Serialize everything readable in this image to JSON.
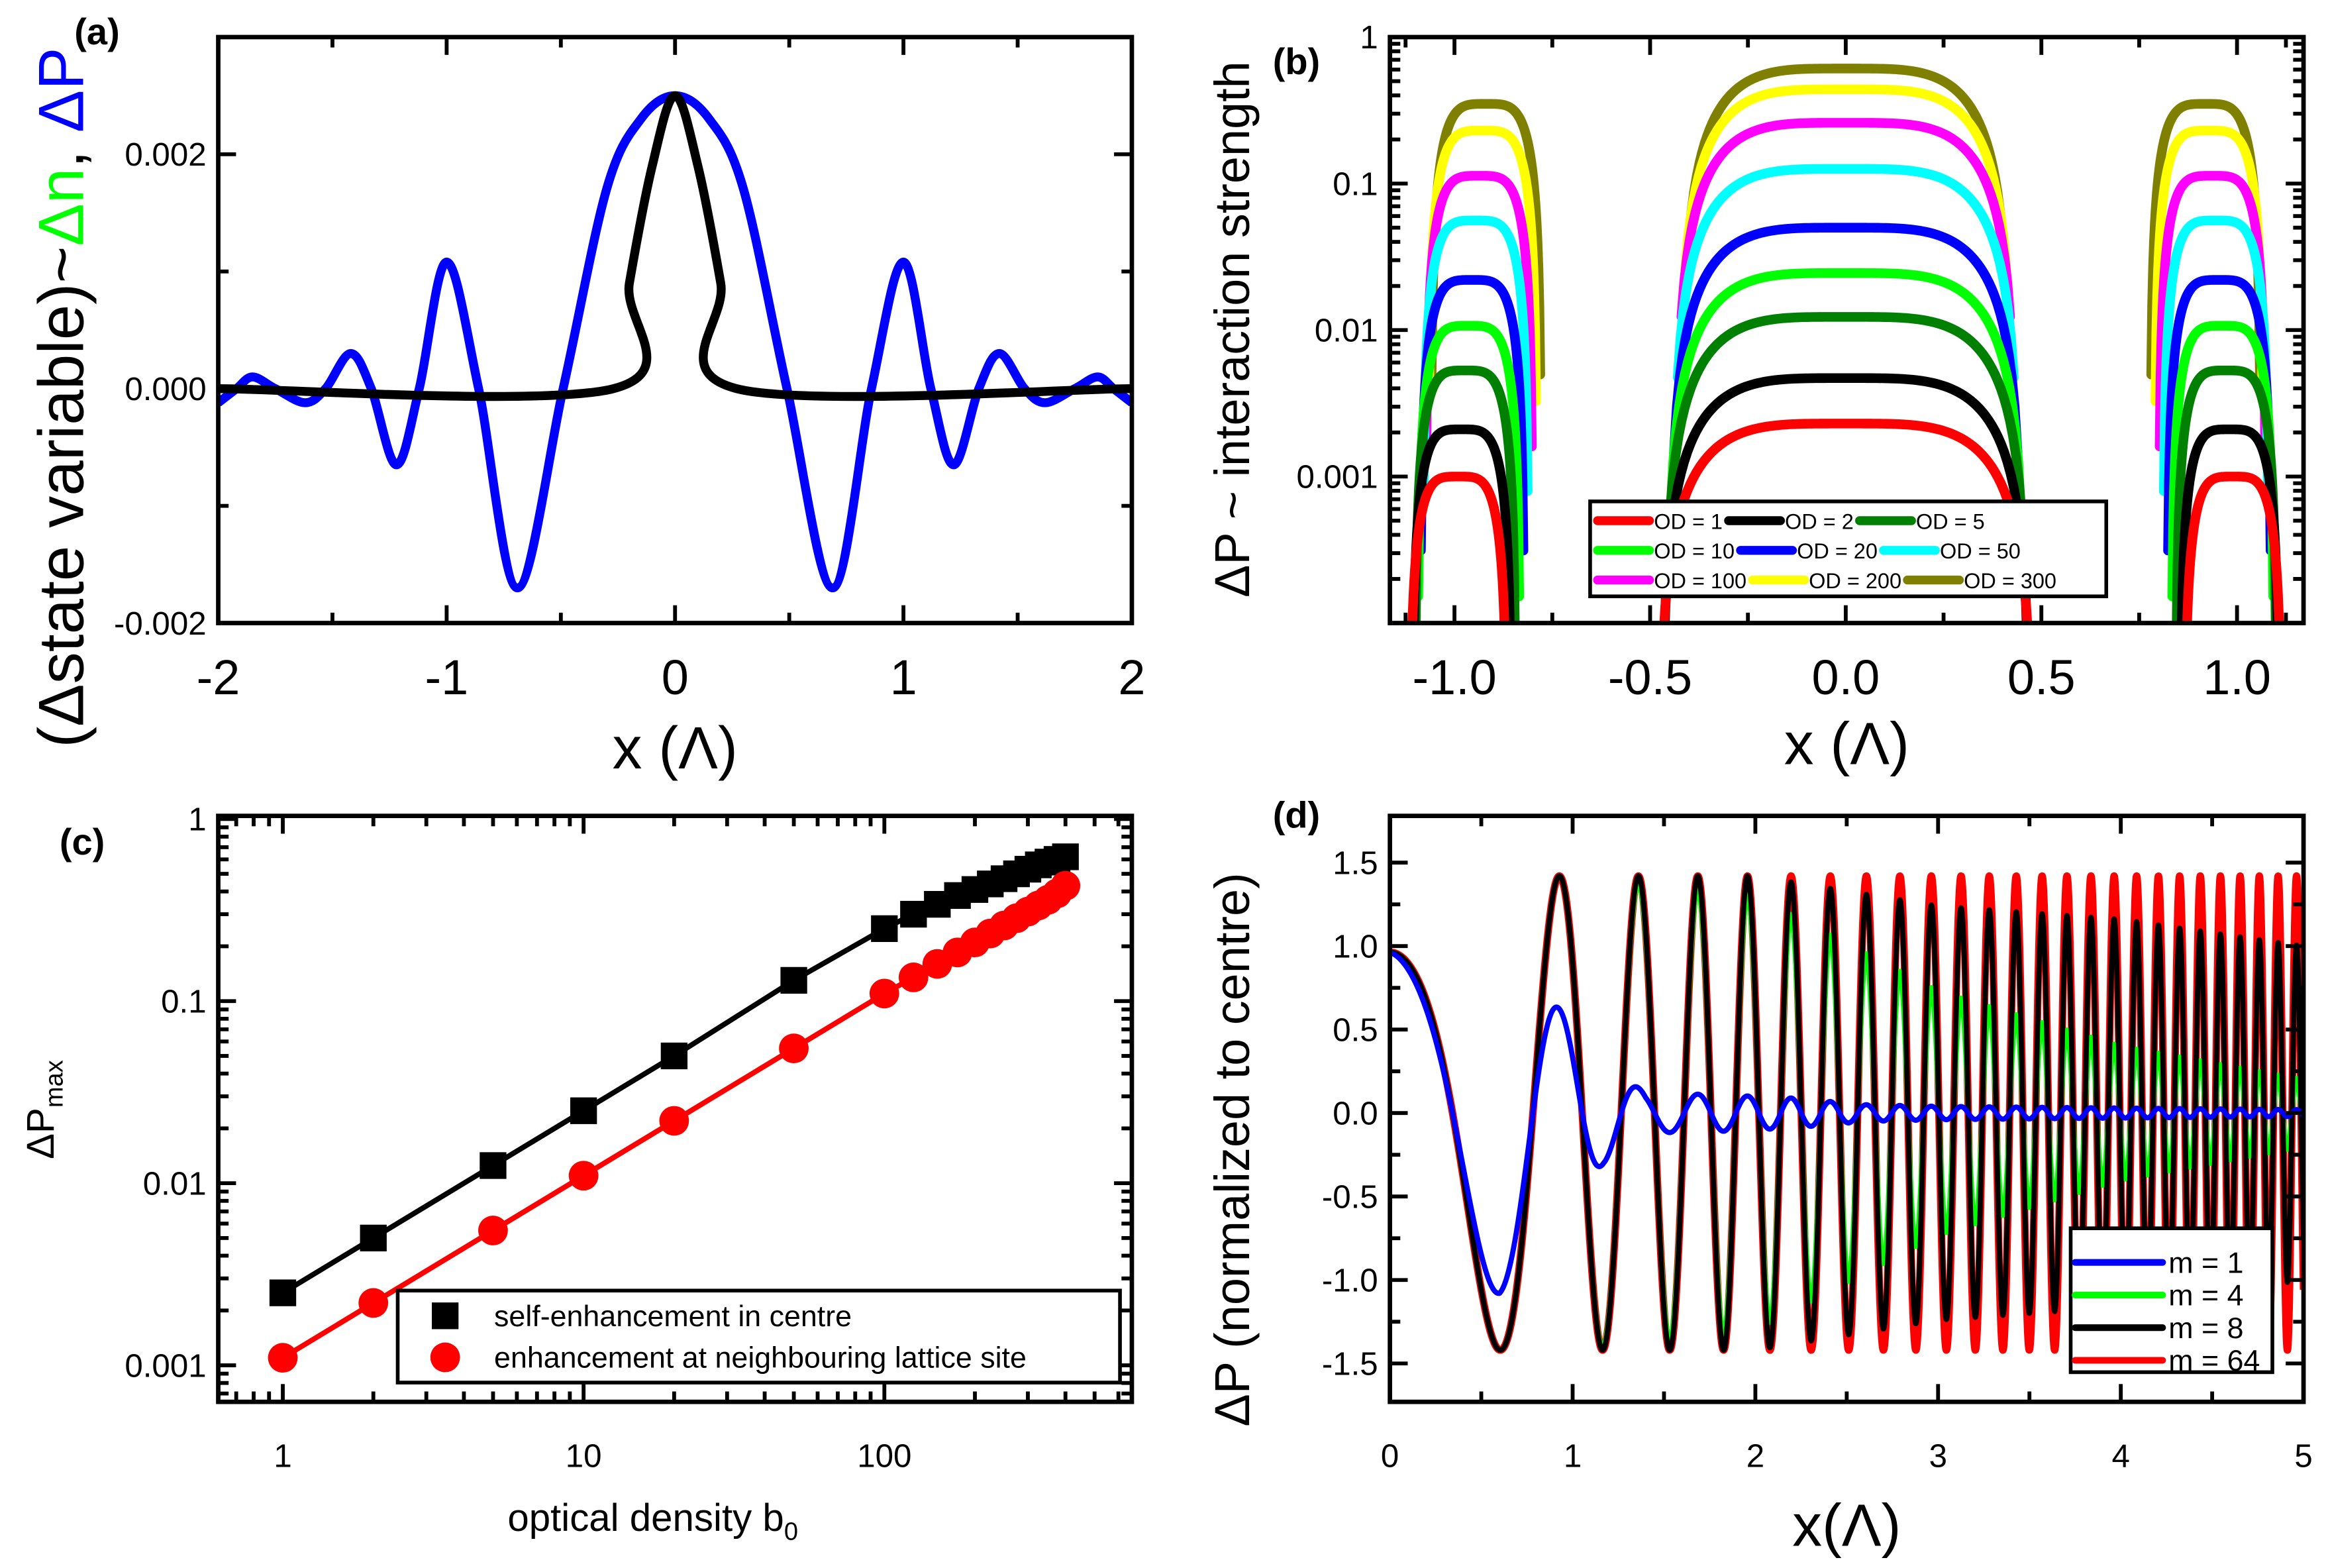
{
  "chart_data": [
    {
      "panel": "(a)",
      "type": "line",
      "xlabel": "x (Λ)",
      "ylabel_parts": [
        {
          "text": "(Δstate variable)~",
          "color": "#000000"
        },
        {
          "text": "Δn",
          "color": "#00ff00"
        },
        {
          "text": ", ",
          "color": "#000000"
        },
        {
          "text": "ΔP",
          "color": "#0000ff"
        }
      ],
      "xlim": [
        -2,
        2
      ],
      "ylim": [
        -0.002,
        0.003
      ],
      "xticks": [
        -2,
        -1,
        0,
        1,
        2
      ],
      "xtick_labels": [
        "-2",
        "-1",
        "0",
        "1",
        "2"
      ],
      "yticks": [
        -0.002,
        0.0,
        0.002
      ],
      "ytick_labels": [
        "-0.002",
        "0.000",
        "0.002"
      ],
      "series": [
        {
          "name": "ΔP",
          "color": "#0000ff",
          "x": [
            -2.0,
            -1.92,
            -1.85,
            -1.75,
            -1.62,
            -1.53,
            -1.42,
            -1.33,
            -1.22,
            -1.12,
            -1.0,
            -0.86,
            -0.69,
            -0.49,
            -0.3,
            -0.15,
            0,
            0.15,
            0.3,
            0.49,
            0.69,
            0.86,
            1.0,
            1.12,
            1.22,
            1.33,
            1.42,
            1.53,
            1.62,
            1.75,
            1.85,
            1.92,
            2.0
          ],
          "y": [
            -0.00012,
            0,
            0.0001,
            0,
            -0.00012,
            0,
            0.0003,
            0,
            -0.00065,
            0,
            0.00108,
            0,
            -0.0017,
            0,
            0.0017,
            0.0023,
            0.0025,
            0.0023,
            0.0017,
            0,
            -0.0017,
            0,
            0.00108,
            0,
            -0.00065,
            0,
            0.0003,
            0,
            -0.00012,
            0,
            0.0001,
            0,
            -0.00012
          ]
        },
        {
          "name": "Δn",
          "color": "#000000",
          "x": [
            -2,
            -0.27,
            -0.2,
            -0.1,
            0,
            0.1,
            0.2,
            0.27,
            2
          ],
          "y": [
            0,
            0,
            0.0009,
            0.0019,
            0.0025,
            0.0019,
            0.0009,
            0,
            0
          ]
        }
      ]
    },
    {
      "panel": "(b)",
      "type": "line",
      "xlabel": "x (Λ)",
      "ylabel": "ΔP ~ interaction strength",
      "xlim": [
        -1.165,
        1.17
      ],
      "ylim": [
        0.0001,
        1
      ],
      "yscale": "log",
      "xticks": [
        -1.0,
        -0.5,
        0.0,
        0.5,
        1.0
      ],
      "xtick_labels": [
        "-1.0",
        "-0.5",
        "0.0",
        "0.5",
        "1.0"
      ],
      "yticks": [
        0.001,
        0.01,
        0.1,
        1
      ],
      "ytick_labels": [
        "0.001",
        "0.01",
        "0.1",
        "1"
      ],
      "legend_position": "bottom-center",
      "series": [
        {
          "name": "OD = 1",
          "color": "#ff0000",
          "center_peak": 0.0023,
          "side_peak": 0.001
        },
        {
          "name": "OD = 2",
          "color": "#000000",
          "center_peak": 0.0047,
          "side_peak": 0.0021
        },
        {
          "name": "OD = 5",
          "color": "#008000",
          "center_peak": 0.0123,
          "side_peak": 0.0053
        },
        {
          "name": "OD = 10",
          "color": "#00ff00",
          "center_peak": 0.0245,
          "side_peak": 0.0107
        },
        {
          "name": "OD = 20",
          "color": "#0000ff",
          "center_peak": 0.05,
          "side_peak": 0.022
        },
        {
          "name": "OD = 50",
          "color": "#00ffff",
          "center_peak": 0.126,
          "side_peak": 0.056
        },
        {
          "name": "OD = 100",
          "color": "#ff00ff",
          "center_peak": 0.26,
          "side_peak": 0.113
        },
        {
          "name": "OD = 200",
          "color": "#ffff00",
          "center_peak": 0.44,
          "side_peak": 0.23
        },
        {
          "name": "OD = 300",
          "color": "#808000",
          "center_peak": 0.61,
          "side_peak": 0.35
        }
      ]
    },
    {
      "panel": "(c)",
      "type": "scatter",
      "xlabel": "optical density b",
      "xlabel_sub": "0",
      "ylabel": "ΔP",
      "ylabel_sub": "max",
      "xscale": "log",
      "yscale": "log",
      "xlim": [
        0.61,
        665
      ],
      "ylim": [
        0.00063,
        1.04
      ],
      "xticks": [
        1,
        10,
        100
      ],
      "xtick_labels": [
        "1",
        "10",
        "100"
      ],
      "yticks": [
        0.001,
        0.01,
        0.1,
        1
      ],
      "ytick_labels": [
        "0.001",
        "0.01",
        "0.1",
        "1"
      ],
      "legend_position": "bottom-right",
      "series": [
        {
          "name": "self-enhancement in centre",
          "color": "#000000",
          "marker": "square",
          "x": [
            1,
            2,
            5,
            10,
            20,
            50,
            100,
            125,
            150,
            175,
            200,
            225,
            250,
            275,
            300,
            325,
            350,
            375,
            400
          ],
          "y": [
            0.0025,
            0.005,
            0.0125,
            0.025,
            0.05,
            0.13,
            0.25,
            0.3,
            0.34,
            0.38,
            0.41,
            0.44,
            0.47,
            0.5,
            0.53,
            0.56,
            0.58,
            0.6,
            0.62
          ]
        },
        {
          "name": "enhancement at neighbouring lattice site",
          "color": "#ff0000",
          "marker": "circle",
          "x": [
            1,
            2,
            5,
            10,
            20,
            50,
            100,
            125,
            150,
            175,
            200,
            225,
            250,
            275,
            300,
            325,
            350,
            375,
            400
          ],
          "y": [
            0.0011,
            0.0022,
            0.0055,
            0.011,
            0.022,
            0.055,
            0.11,
            0.135,
            0.16,
            0.185,
            0.21,
            0.235,
            0.26,
            0.285,
            0.31,
            0.335,
            0.36,
            0.39,
            0.43
          ]
        }
      ]
    },
    {
      "panel": "(d)",
      "type": "line",
      "xlabel": "x(Λ)",
      "ylabel": "ΔP (normalized to centre)",
      "xlim": [
        0,
        5
      ],
      "ylim": [
        -1.73,
        1.78
      ],
      "xticks": [
        0,
        1,
        2,
        3,
        4,
        5
      ],
      "xtick_labels": [
        "0",
        "1",
        "2",
        "3",
        "4",
        "5"
      ],
      "yticks": [
        -1.5,
        -1.0,
        -0.5,
        0.0,
        0.5,
        1.0,
        1.5
      ],
      "ytick_labels": [
        "-1.5",
        "-1.0",
        "-0.5",
        "0.0",
        "0.5",
        "1.0",
        "1.5"
      ],
      "legend_position": "bottom-right",
      "oscillation_peaks_x": [
        0,
        0.93,
        1.37,
        1.69,
        1.96,
        2.2,
        2.42,
        2.61,
        2.79,
        2.96,
        3.13,
        3.29,
        3.44,
        3.58,
        3.72,
        3.85,
        3.97,
        4.1,
        4.22,
        4.34,
        4.46,
        4.57,
        4.68,
        4.78,
        4.88,
        4.98
      ],
      "series": [
        {
          "name": "m = 64",
          "color": "#ff0000",
          "envelope_x": [
            0,
            5
          ],
          "envelope_amp": [
            1.42,
            1.42
          ]
        },
        {
          "name": "m = 4",
          "color": "#00ff00",
          "envelope_x": [
            0,
            1,
            2,
            3,
            4,
            5
          ],
          "envelope_amp": [
            1.42,
            1.42,
            1.3,
            0.73,
            0.4,
            0.2
          ]
        },
        {
          "name": "m = 8",
          "color": "#000000",
          "envelope_x": [
            0,
            2,
            3,
            4,
            5
          ],
          "envelope_amp": [
            1.42,
            1.42,
            1.24,
            1.16,
            1.0
          ]
        },
        {
          "name": "m = 1",
          "color": "#0000ff",
          "envelope_x": [
            0,
            0.6,
            0.93,
            1.17,
            1.4,
            1.8,
            2.2,
            2.6,
            3,
            4,
            5
          ],
          "envelope_amp": [
            1.42,
            1.08,
            0.62,
            0.3,
            0.12,
            0.11,
            0.09,
            0.05,
            0.04,
            0.03,
            0.02
          ]
        }
      ],
      "legend_order": [
        "m = 1",
        "m = 4",
        "m = 8",
        "m = 64"
      ]
    }
  ]
}
